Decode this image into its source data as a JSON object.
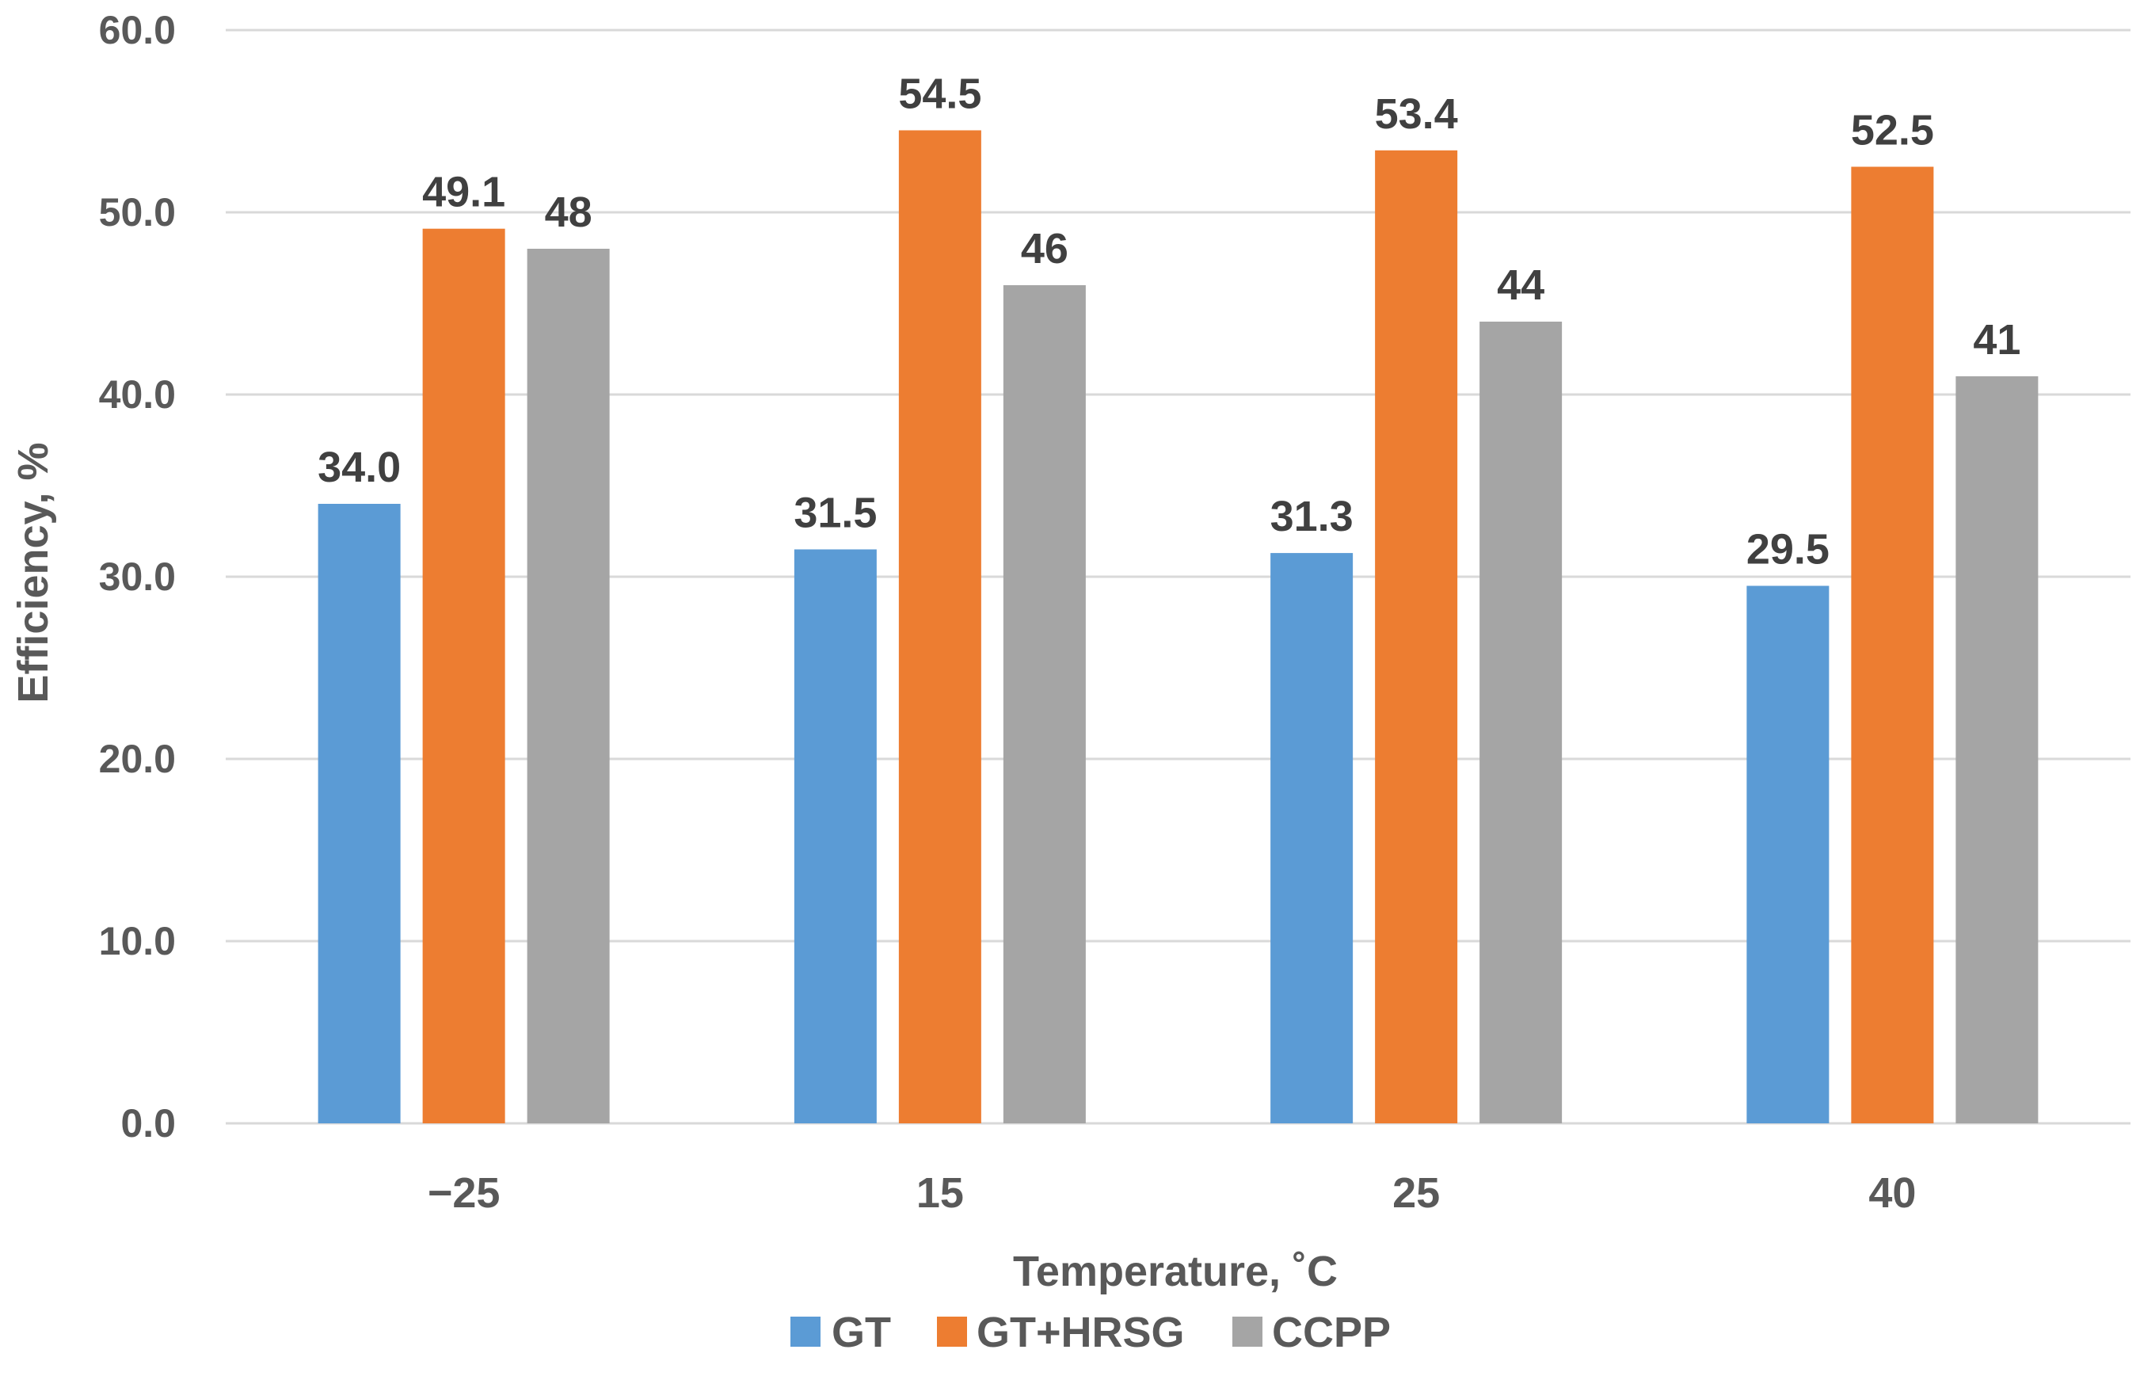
{
  "chart_data": {
    "type": "bar",
    "title": "",
    "xlabel": "Temperature, ˚C",
    "ylabel": "Efficiency, %",
    "categories": [
      "−25",
      "15",
      "25",
      "40"
    ],
    "ylim": [
      0,
      60
    ],
    "yticks": [
      "0.0",
      "10.0",
      "20.0",
      "30.0",
      "40.0",
      "50.0",
      "60.0"
    ],
    "grid": true,
    "legend_position": "bottom",
    "series": [
      {
        "name": "GT",
        "color": "#5b9bd5",
        "values": [
          34.0,
          31.5,
          31.3,
          29.5
        ],
        "labels": [
          "34.0",
          "31.5",
          "31.3",
          "29.5"
        ]
      },
      {
        "name": "GT+HRSG",
        "color": "#ed7d31",
        "values": [
          49.1,
          54.5,
          53.4,
          52.5
        ],
        "labels": [
          "49.1",
          "54.5",
          "53.4",
          "52.5"
        ]
      },
      {
        "name": "CCPP",
        "color": "#a5a5a5",
        "values": [
          48,
          46,
          44,
          41
        ],
        "labels": [
          "48",
          "46",
          "44",
          "41"
        ]
      }
    ]
  }
}
